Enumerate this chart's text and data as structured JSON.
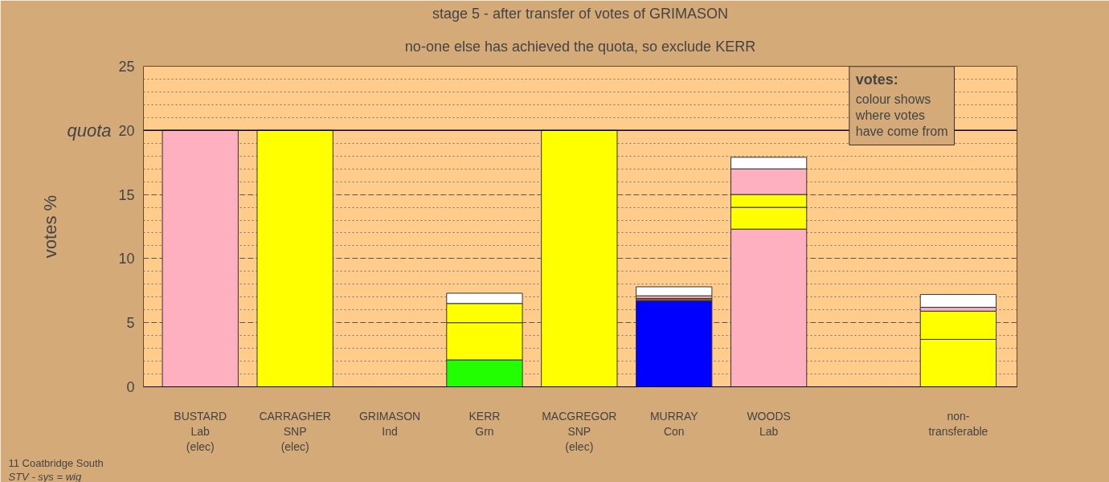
{
  "chart_data": {
    "type": "bar",
    "stacked": true,
    "title": "stage 5 - after transfer of votes of GRIMASON",
    "subtitle": "no-one else has achieved the quota, so exclude KERR",
    "ylabel": "votes %",
    "categories": [
      "BUSTARD\nLab\n(elec)",
      "CARRAGHER\nSNP\n(elec)",
      "GRIMASON\nInd",
      "KERR\nGrn",
      "MACGREGOR\nSNP\n(elec)",
      "MURRAY\nCon",
      "WOODS\nLab",
      null,
      "non-\ntransferable"
    ],
    "series": [
      {
        "colors": [
          "#ffb0c0",
          "#ffff00",
          null,
          "#22ff00",
          "#ffff00",
          "#0000ff",
          "#ffb0c0",
          null,
          "#ffff00"
        ],
        "values": [
          20,
          20,
          null,
          2.1,
          20,
          6.7,
          12.3,
          null,
          3.7
        ]
      },
      {
        "colors": [
          null,
          null,
          null,
          "#ffff00",
          null,
          "#8b5a2b",
          "#ffff00",
          null,
          "#ffff00"
        ],
        "values": [
          null,
          null,
          null,
          2.9,
          null,
          0.2,
          1.7,
          null,
          2.2
        ]
      },
      {
        "colors": [
          null,
          null,
          null,
          "#ffff00",
          null,
          "#ffb0c0",
          "#ffff00",
          null,
          "#ffb0c0"
        ],
        "values": [
          null,
          null,
          null,
          1.5,
          null,
          0.2,
          1.0,
          null,
          0.3
        ]
      },
      {
        "colors": [
          null,
          null,
          null,
          "#ffffff",
          null,
          "#ffffff",
          "#ffb0c0",
          null,
          "#ffffff"
        ],
        "values": [
          null,
          null,
          null,
          0.8,
          null,
          0.7,
          2.0,
          null,
          1.0
        ]
      },
      {
        "colors": [
          null,
          null,
          null,
          null,
          null,
          null,
          "#ffffff",
          null,
          null
        ],
        "values": [
          null,
          null,
          null,
          null,
          null,
          null,
          0.9,
          null,
          null
        ]
      }
    ],
    "ylim": [
      0,
      25
    ],
    "yticks": [
      0,
      5,
      10,
      15,
      20,
      25
    ],
    "grid": "y",
    "ref_lines": [
      {
        "axis": "y",
        "value": 20,
        "label": "quota"
      }
    ],
    "annotations": [
      "votes:",
      "colour shows\nwhere votes\nhave come from",
      "11 Coatbridge South",
      "STV - sys = wig"
    ]
  }
}
